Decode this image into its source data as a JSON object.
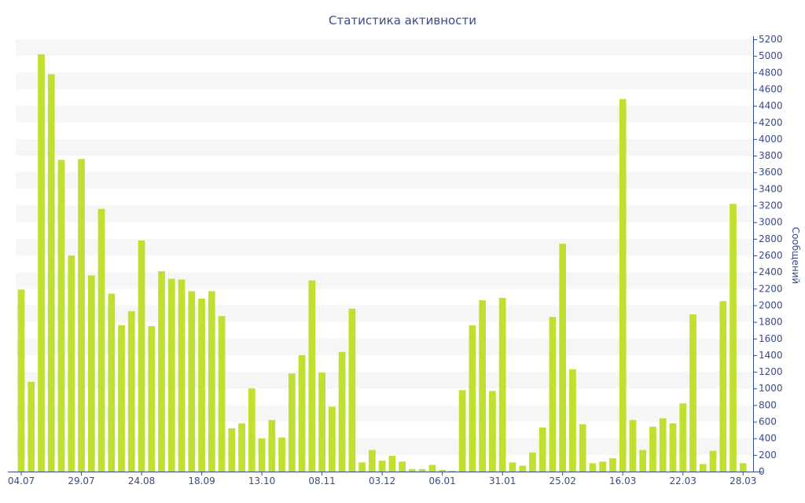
{
  "chart_data": {
    "type": "bar",
    "title": "Статистика активности",
    "ylabel": "Сообщений",
    "xlabel": "",
    "ylim": [
      0,
      5200
    ],
    "y_ticks": [
      0,
      200,
      400,
      600,
      800,
      1000,
      1200,
      1400,
      1600,
      1800,
      2000,
      2200,
      2400,
      2600,
      2800,
      3000,
      3200,
      3400,
      3600,
      3800,
      4000,
      4200,
      4400,
      4600,
      4800,
      5000,
      5200
    ],
    "y_axis_position": "right",
    "grid": "horizontal bands",
    "bar_color": "#bfe031",
    "band_color": "#f6f6f6",
    "text_color": "#3a4a8a",
    "x_tick_labels": [
      {
        "label": "04.07",
        "index": 0
      },
      {
        "label": "29.07",
        "index": 6
      },
      {
        "label": "24.08",
        "index": 12
      },
      {
        "label": "18.09",
        "index": 18
      },
      {
        "label": "13.10",
        "index": 24
      },
      {
        "label": "08.11",
        "index": 30
      },
      {
        "label": "03.12",
        "index": 36
      },
      {
        "label": "06.01",
        "index": 42
      },
      {
        "label": "31.01",
        "index": 48
      },
      {
        "label": "25.02",
        "index": 54
      },
      {
        "label": "16.03",
        "index": 60
      },
      {
        "label": "22.03",
        "index": 66
      },
      {
        "label": "28.03",
        "index": 72
      }
    ],
    "values": [
      2190,
      1080,
      5020,
      4780,
      3750,
      2600,
      3760,
      2360,
      3160,
      2140,
      1760,
      1930,
      2780,
      1750,
      2410,
      2320,
      2310,
      2170,
      2080,
      2170,
      1870,
      520,
      580,
      1000,
      400,
      620,
      410,
      1180,
      1400,
      2300,
      1190,
      780,
      1440,
      1960,
      110,
      260,
      130,
      190,
      120,
      30,
      30,
      80,
      20,
      10,
      980,
      1760,
      2060,
      970,
      2090,
      110,
      70,
      230,
      530,
      1860,
      2740,
      1230,
      570,
      100,
      120,
      160,
      4480,
      620,
      260,
      540,
      640,
      580,
      820,
      1890,
      90,
      250,
      2050,
      3220,
      100
    ]
  }
}
